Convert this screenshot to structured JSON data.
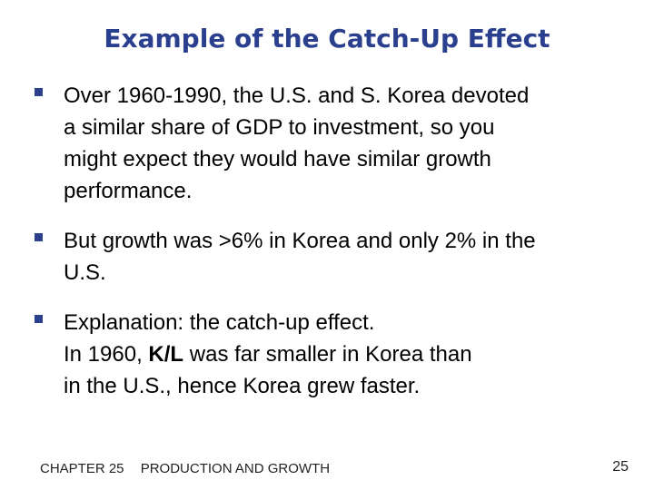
{
  "slide": {
    "title": "Example of the Catch-Up Effect",
    "bullets": [
      {
        "lines": [
          "Over 1960-1990, the U.S. and S. Korea devoted",
          "a similar share of GDP to investment, so you",
          "might expect they would have similar growth",
          "performance."
        ]
      },
      {
        "lines": [
          "But growth was >6% in Korea and only 2% in the",
          "U.S."
        ]
      },
      {
        "line1": "Explanation:  the catch-up effect.",
        "line2_pre": "In 1960, ",
        "line2_bold": "K/L",
        "line2_post": " was far smaller in Korea than",
        "line3": "in the U.S., hence Korea grew faster."
      }
    ]
  },
  "footer": {
    "chapter": "CHAPTER 25",
    "subject": "PRODUCTION AND GROWTH",
    "page_number": "25"
  },
  "colors": {
    "accent": "#2b3f8f",
    "text": "#000000",
    "background": "#ffffff"
  }
}
